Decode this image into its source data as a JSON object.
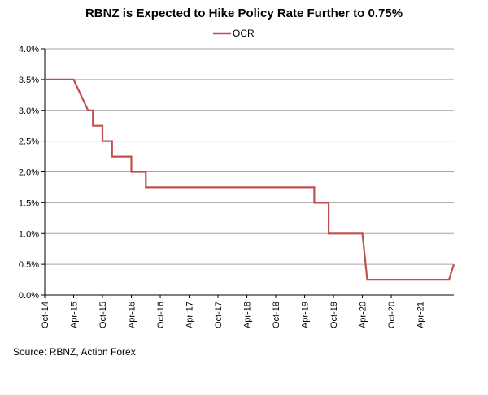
{
  "chart_data": {
    "type": "line",
    "title": "RBNZ is Expected to Hike Policy Rate Further to 0.75%",
    "legend": [
      "OCR"
    ],
    "legend_position": "top-center",
    "series_color": "#C0504D",
    "xlabel": "",
    "ylabel": "",
    "ylim": [
      0,
      4.0
    ],
    "yticks": [
      "0.0%",
      "0.5%",
      "1.0%",
      "1.5%",
      "2.0%",
      "2.5%",
      "3.0%",
      "3.5%",
      "4.0%"
    ],
    "xticks": [
      "Oct-14",
      "Apr-15",
      "Oct-15",
      "Apr-16",
      "Oct-16",
      "Apr-17",
      "Oct-17",
      "Apr-18",
      "Oct-18",
      "Apr-19",
      "Oct-19",
      "Apr-20",
      "Oct-20",
      "Apr-21"
    ],
    "xrange_months": [
      0,
      85
    ],
    "grid": true,
    "series": [
      {
        "name": "OCR",
        "points": [
          [
            0,
            3.5
          ],
          [
            6,
            3.5
          ],
          [
            9,
            3.0
          ],
          [
            10,
            3.0
          ],
          [
            10,
            2.75
          ],
          [
            12,
            2.75
          ],
          [
            12,
            2.5
          ],
          [
            14,
            2.5
          ],
          [
            14,
            2.25
          ],
          [
            18,
            2.25
          ],
          [
            18,
            2.0
          ],
          [
            21,
            2.0
          ],
          [
            21,
            1.75
          ],
          [
            56,
            1.75
          ],
          [
            56,
            1.5
          ],
          [
            59,
            1.5
          ],
          [
            59,
            1.0
          ],
          [
            66,
            1.0
          ],
          [
            67,
            0.25
          ],
          [
            84,
            0.25
          ],
          [
            85,
            0.5
          ]
        ]
      }
    ]
  },
  "source": "Source: RBNZ, Action Forex"
}
